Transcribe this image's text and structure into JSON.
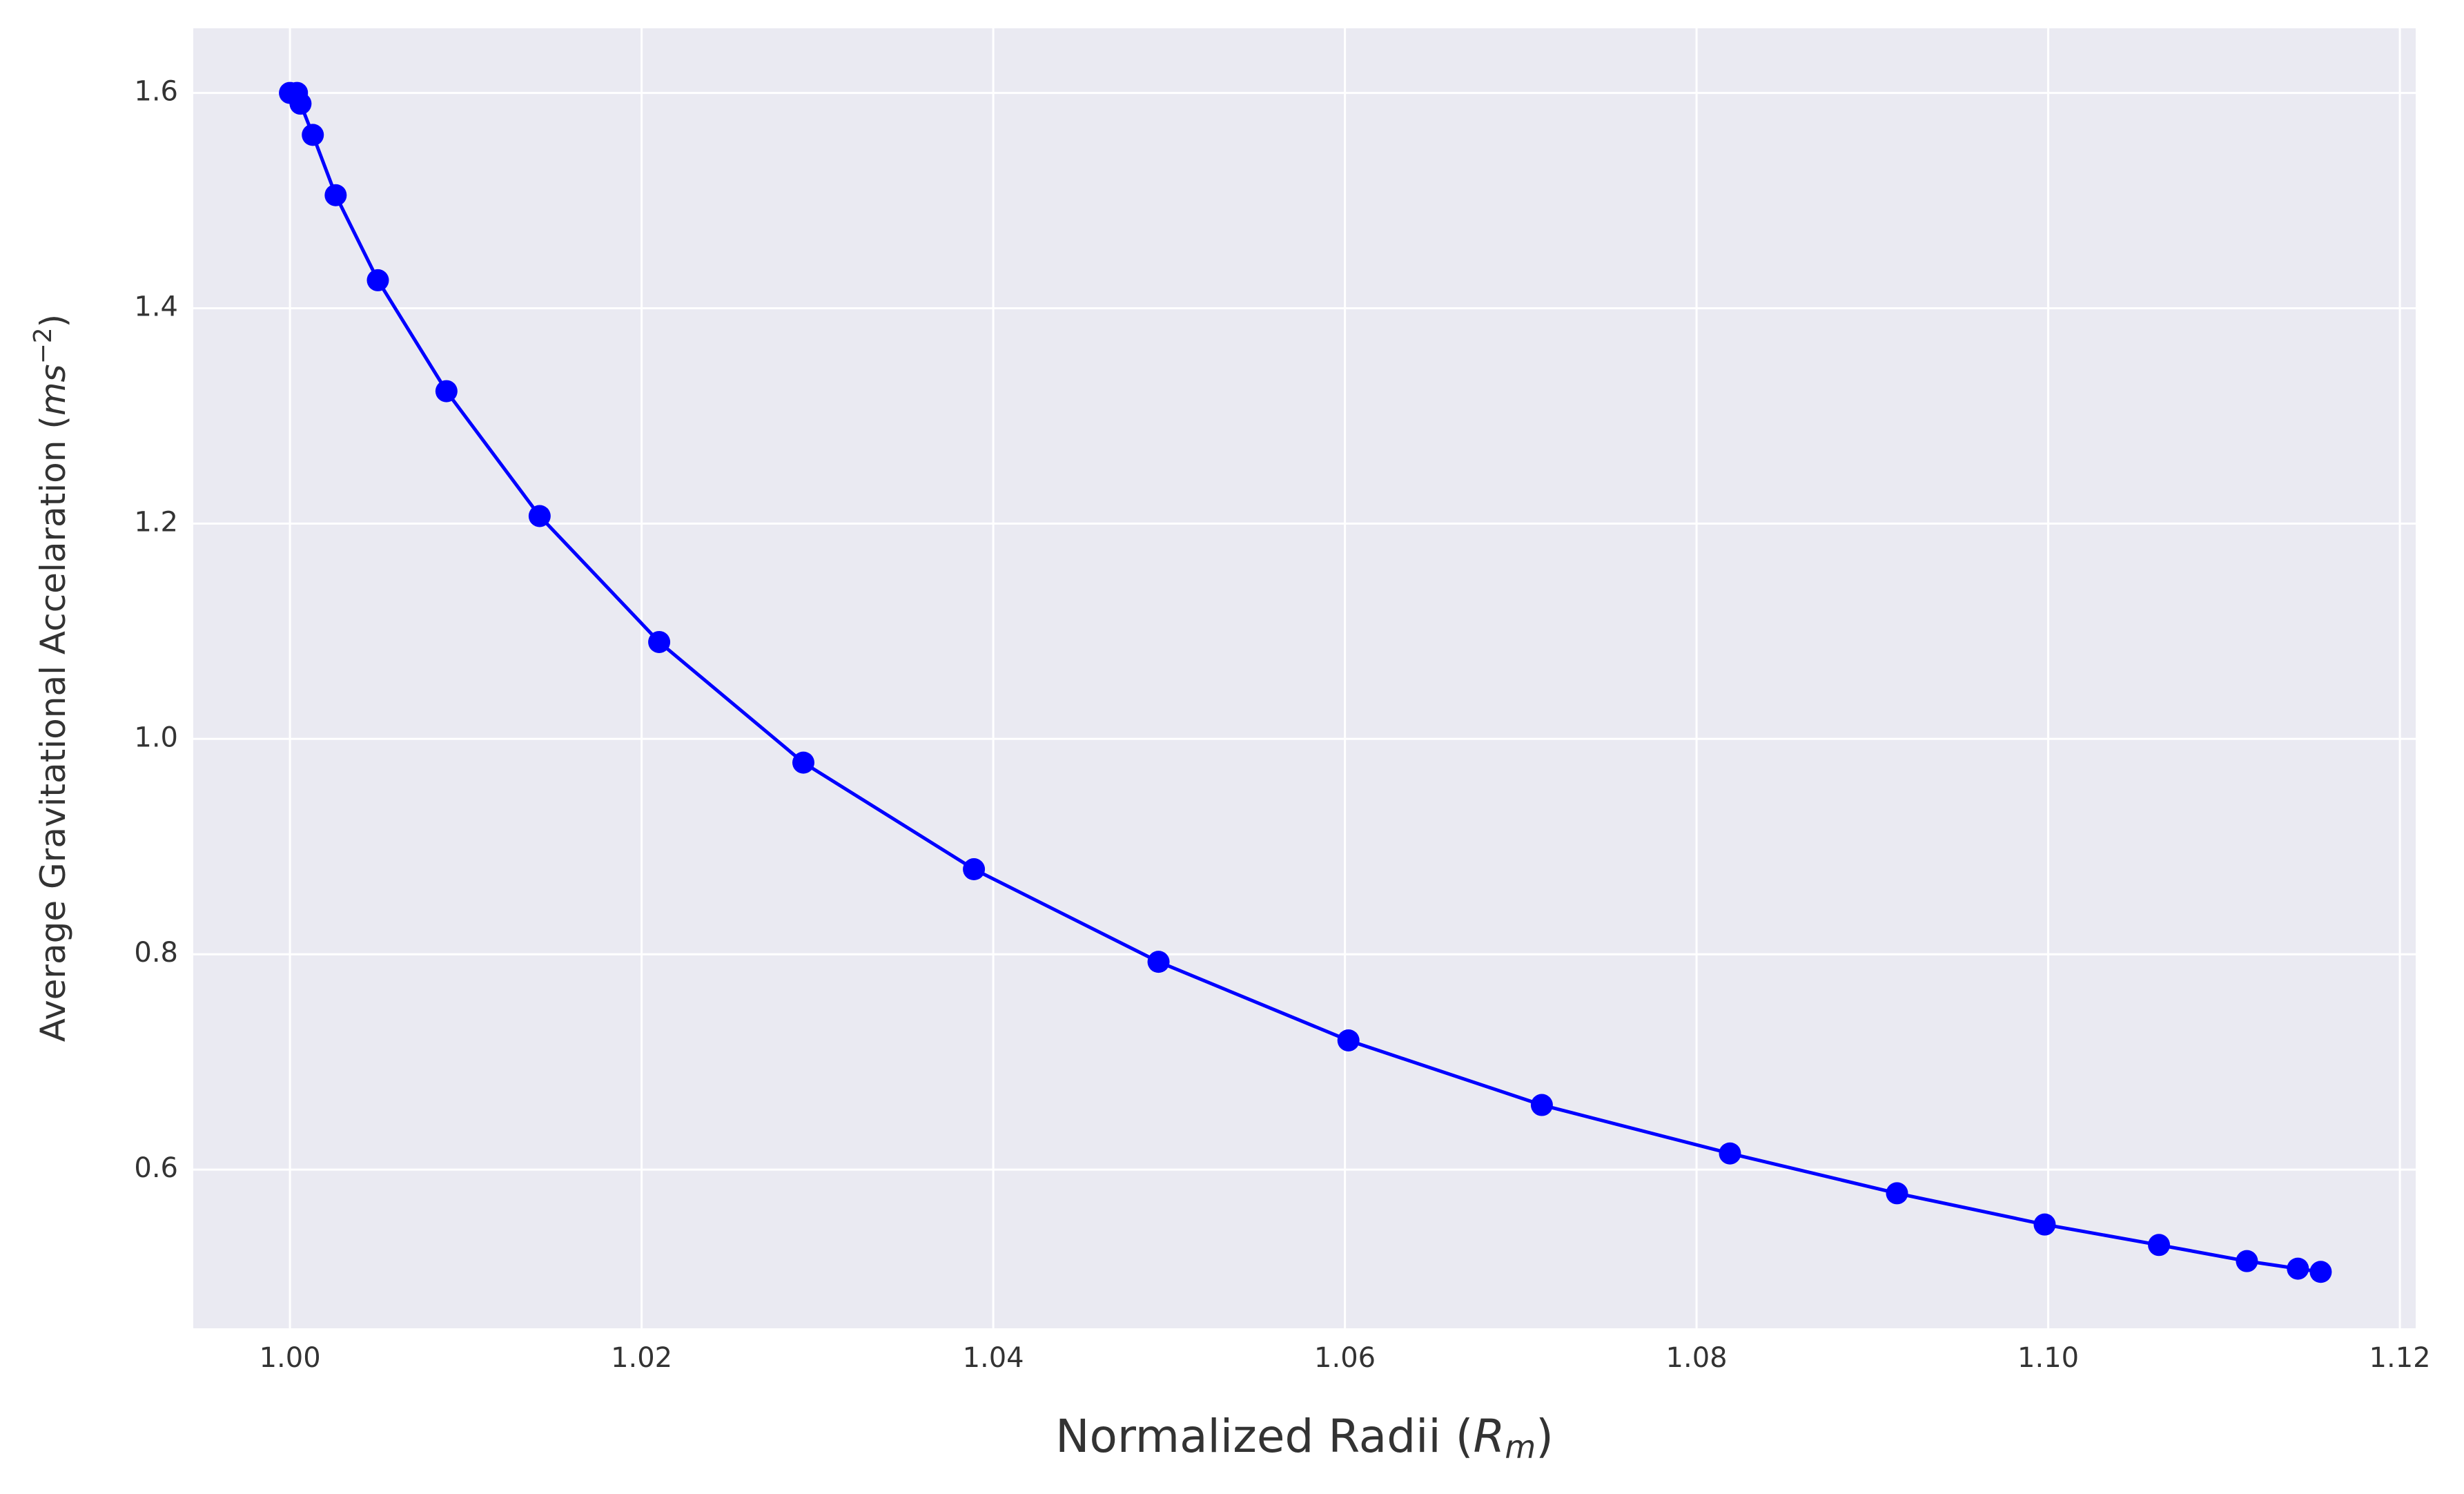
{
  "chart_data": {
    "type": "line",
    "xlabel": [
      "Normalized Radii (",
      "R",
      "m",
      ")"
    ],
    "ylabel": [
      "Average Gravitational Accelaration (",
      "ms",
      "−2",
      ")"
    ],
    "series": [
      {
        "color": "#0000ff",
        "x": [
          1.0,
          1.0004,
          1.0006,
          1.0013,
          1.0026,
          1.005,
          1.0089,
          1.0142,
          1.021,
          1.0292,
          1.0389,
          1.0494,
          1.0602,
          1.0712,
          1.0819,
          1.0914,
          1.0998,
          1.1063,
          1.1113,
          1.1142,
          1.1155
        ],
        "values": [
          1.6,
          1.6,
          1.59,
          1.561,
          1.505,
          1.426,
          1.323,
          1.207,
          1.09,
          0.978,
          0.879,
          0.793,
          0.72,
          0.66,
          0.615,
          0.578,
          0.549,
          0.53,
          0.515,
          0.508,
          0.505
        ]
      }
    ],
    "xlim": [
      0.9945,
      1.1209
    ],
    "ylim": [
      0.4526,
      1.66
    ],
    "xticks": [
      {
        "value": 1.0,
        "label": "1.00"
      },
      1.02,
      1.04,
      1.06,
      1.08,
      {
        "value": 1.1,
        "label": "1.10"
      },
      1.12
    ],
    "yticks": [
      0.6,
      0.8,
      {
        "value": 1.0,
        "label": "1.0"
      },
      1.2,
      1.4,
      1.6
    ],
    "grid": true
  }
}
